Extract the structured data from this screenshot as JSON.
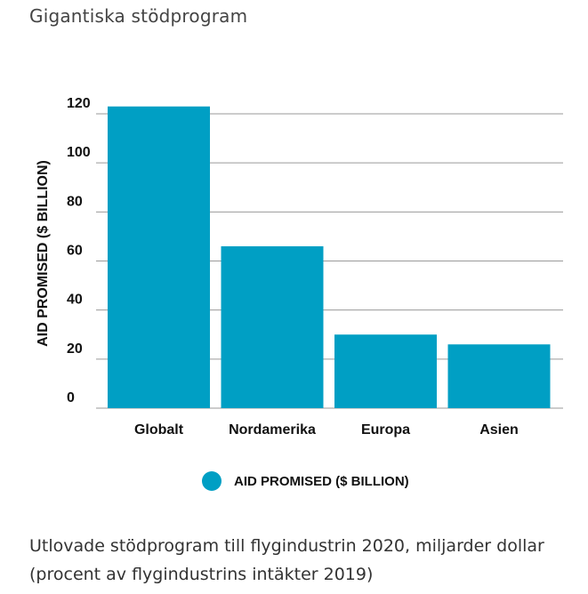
{
  "header": {
    "title": "Gigantiska stödprogram"
  },
  "chart_data": {
    "type": "bar",
    "categories": [
      "Globalt",
      "Nordamerika",
      "Europa",
      "Asien"
    ],
    "series": [
      {
        "name": "AID PROMISED ($ BILLION)",
        "values": [
          123,
          66,
          30,
          26
        ]
      }
    ],
    "ylabel": "AID PROMISED ($ BILLION)",
    "xlabel": "",
    "ylim": [
      0,
      120
    ],
    "yticks": [
      0,
      20,
      40,
      60,
      80,
      100,
      120
    ],
    "grid": true,
    "legend": "bottom-center",
    "bar_color": "#009fc4",
    "grid_color": "#9a9a9a"
  },
  "legend": {
    "label": "AID PROMISED ($ BILLION)"
  },
  "caption": "Utlovade stödprogram till flygindustrin 2020, miljarder dollar (procent av flygindustrins intäkter 2019)"
}
